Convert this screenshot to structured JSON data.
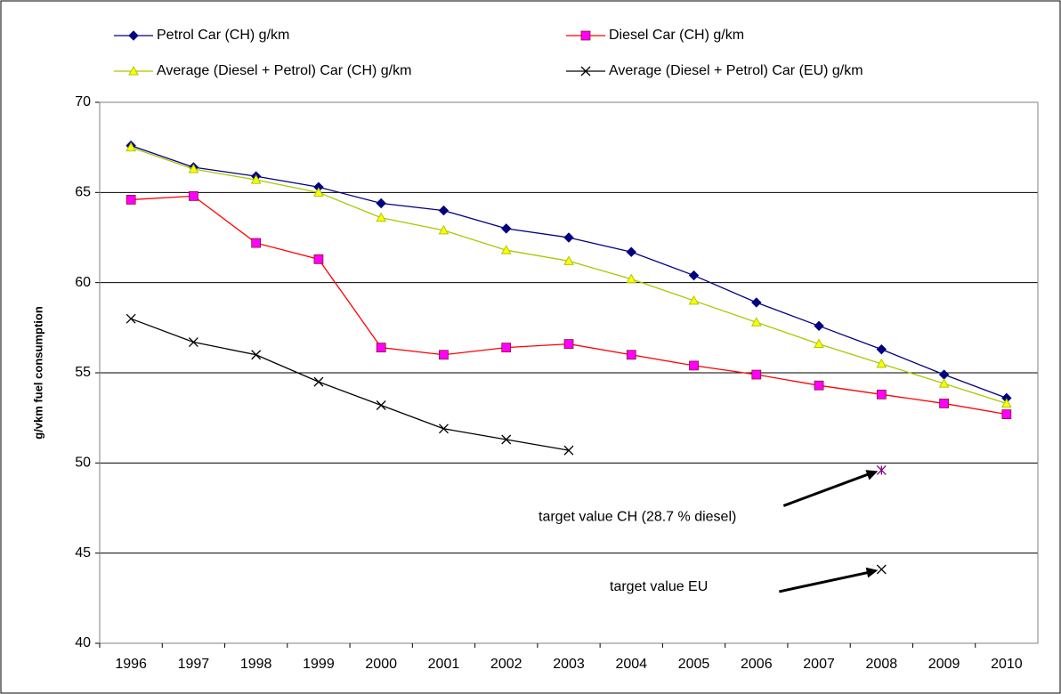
{
  "chart_data": {
    "type": "line",
    "y_label": "g/vkm fuel consumption",
    "categories": [
      1996,
      1997,
      1998,
      1999,
      2000,
      2001,
      2002,
      2003,
      2004,
      2005,
      2006,
      2007,
      2008,
      2009,
      2010
    ],
    "series": [
      {
        "name": "Petrol Car (CH) g/km",
        "color": "#000080",
        "marker": "diamond",
        "values": [
          67.6,
          66.4,
          65.9,
          65.3,
          64.4,
          64.0,
          63.0,
          62.5,
          61.7,
          60.4,
          58.9,
          57.6,
          56.3,
          54.9,
          53.6
        ]
      },
      {
        "name": "Diesel Car (CH) g/km",
        "color": "#ff0000",
        "marker_color": "#ff00ff",
        "marker": "square",
        "values": [
          64.6,
          64.8,
          62.2,
          61.3,
          56.4,
          56.0,
          56.4,
          56.6,
          56.0,
          55.4,
          54.9,
          54.3,
          53.8,
          53.3,
          52.7
        ]
      },
      {
        "name": "Average (Diesel + Petrol) Car (CH) g/km",
        "color": "#a8c800",
        "marker_color": "#ffff00",
        "marker": "triangle",
        "values": [
          67.5,
          66.3,
          65.7,
          65.0,
          63.6,
          62.9,
          61.8,
          61.2,
          60.2,
          59.0,
          57.8,
          56.6,
          55.5,
          54.4,
          53.3
        ]
      },
      {
        "name": "Average (Diesel + Petrol) Car (EU) g/km",
        "color": "#000000",
        "marker": "x",
        "values": [
          58.0,
          56.7,
          56.0,
          54.5,
          53.2,
          51.9,
          51.3,
          50.7,
          null,
          null,
          null,
          null,
          null,
          null,
          null
        ]
      }
    ],
    "target_points": [
      {
        "label": "target value CH (28.7 % diesel)",
        "x": 2008,
        "value": 49.6,
        "color": "#800080",
        "marker": "star"
      },
      {
        "label": "target value EU",
        "x": 2008,
        "value": 44.1,
        "color": "#000000",
        "marker": "x"
      }
    ],
    "ylim": [
      40,
      70
    ],
    "yticks": [
      40,
      45,
      50,
      55,
      60,
      65,
      70
    ],
    "grid": true
  }
}
